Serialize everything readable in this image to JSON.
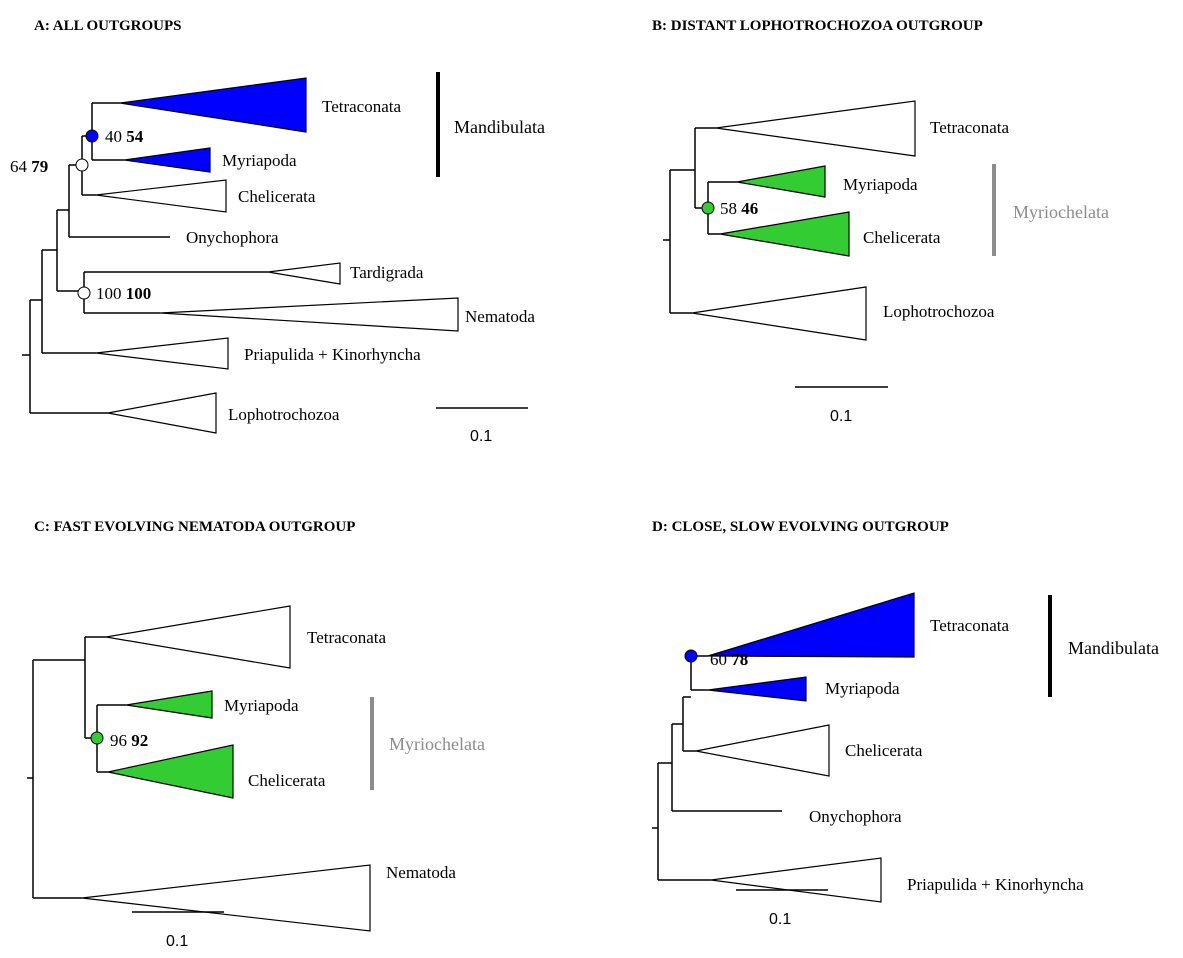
{
  "colors": {
    "mandibulata": "#0000ff",
    "myriochelata": "#33cc33",
    "outline": "#000000",
    "gray_label": "#8c8c8c"
  },
  "panels": {
    "a": {
      "title": "A:  ALL OUTGROUPS",
      "taxa": [
        "Tetraconata",
        "Myriapoda",
        "Chelicerata",
        "Onychophora",
        "Tardigrada",
        "Nematoda",
        "Priapulida + Kinorhyncha",
        "Lophotrochozoa"
      ],
      "supports": [
        {
          "plain": "40",
          "bold": "54"
        },
        {
          "plain": "64",
          "bold": "79"
        },
        {
          "plain": "100",
          "bold": "100"
        }
      ],
      "clade": "Mandibulata",
      "scale": "0.1"
    },
    "b": {
      "title": "B:  DISTANT LOPHOTROCHOZOA OUTGROUP",
      "taxa": [
        "Tetraconata",
        "Myriapoda",
        "Chelicerata",
        "Lophotrochozoa"
      ],
      "supports": [
        {
          "plain": "58",
          "bold": "46"
        }
      ],
      "clade": "Myriochelata",
      "scale": "0.1"
    },
    "c": {
      "title": "C: FAST EVOLVING  NEMATODA  OUTGROUP",
      "taxa": [
        "Tetraconata",
        "Myriapoda",
        "Chelicerata",
        "Nematoda"
      ],
      "supports": [
        {
          "plain": "96",
          "bold": "92"
        }
      ],
      "clade": "Myriochelata",
      "scale": "0.1"
    },
    "d": {
      "title": "D:  CLOSE, SLOW EVOLVING OUTGROUP",
      "taxa": [
        "Tetraconata",
        "Myriapoda",
        "Chelicerata",
        "Onychophora",
        "Priapulida + Kinorhyncha"
      ],
      "supports": [
        {
          "plain": "60",
          "bold": "78"
        }
      ],
      "clade": "Mandibulata",
      "scale": "0.1"
    }
  }
}
